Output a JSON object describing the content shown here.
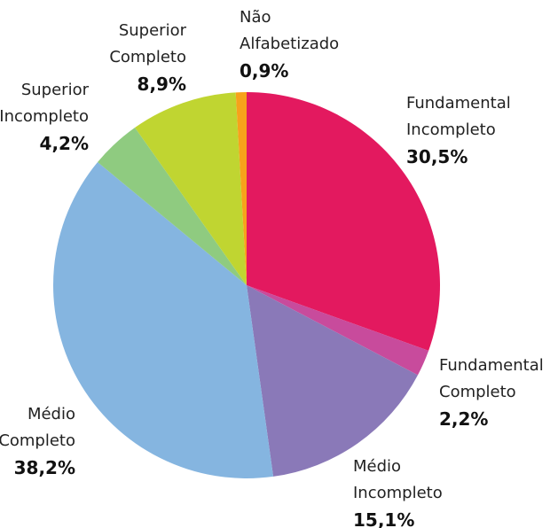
{
  "chart_data": {
    "type": "pie",
    "categories": [
      "Fundamental Incompleto",
      "Fundamental Completo",
      "Médio Incompleto",
      "Médio Completo",
      "Superior Incompleto",
      "Superior Completo",
      "Não Alfabetizado"
    ],
    "values": [
      30.5,
      2.2,
      15.1,
      38.2,
      4.2,
      8.9,
      0.9
    ],
    "value_labels": [
      "30,5%",
      "2,2%",
      "15,1%",
      "38,2%",
      "4,2%",
      "8,9%",
      "0,9%"
    ],
    "colors": [
      "#e3195f",
      "#c84b9c",
      "#8a79b8",
      "#85b5e0",
      "#8fcb80",
      "#c0d531",
      "#f7a21b"
    ]
  }
}
